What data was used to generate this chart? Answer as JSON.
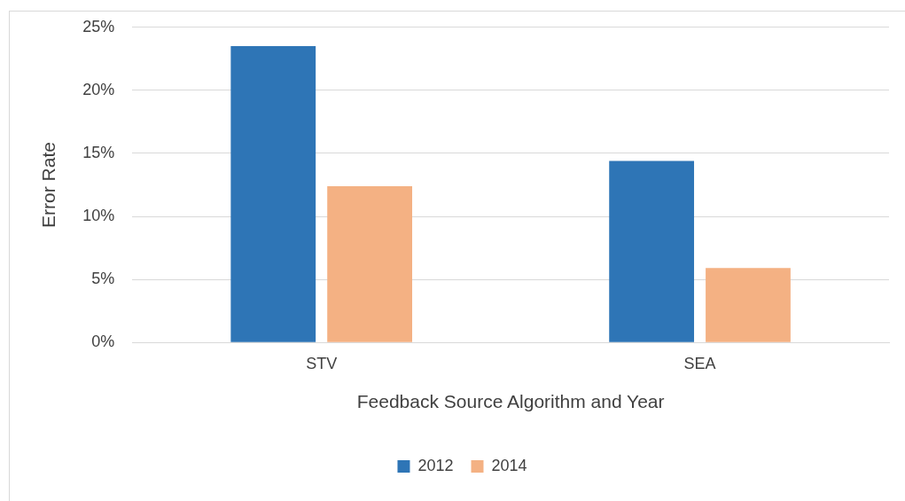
{
  "chart_data": {
    "type": "bar",
    "xlabel": "Feedback Source Algorithm and Year",
    "ylabel": "Error Rate",
    "categories": [
      "STV",
      "SEA"
    ],
    "series": [
      {
        "name": "2012",
        "color": "#2e75b6",
        "values": [
          23.5,
          14.4
        ]
      },
      {
        "name": "2014",
        "color": "#f4b183",
        "values": [
          12.4,
          5.9
        ]
      }
    ],
    "ylim": [
      0,
      25
    ],
    "yticks": [
      {
        "value": 0,
        "label": "0%"
      },
      {
        "value": 5,
        "label": "5%"
      },
      {
        "value": 10,
        "label": "10%"
      },
      {
        "value": 15,
        "label": "15%"
      },
      {
        "value": 20,
        "label": "20%"
      },
      {
        "value": 25,
        "label": "25%"
      }
    ],
    "grid": "y",
    "legend": "bottom"
  }
}
